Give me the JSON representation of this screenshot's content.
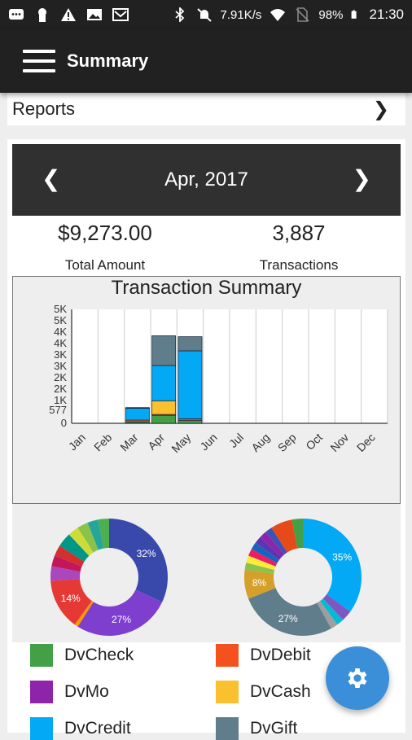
{
  "status_bar": {
    "network_speed": "7.91K/s",
    "battery": "98%",
    "time": "21:30"
  },
  "app_bar": {
    "title": "Summary"
  },
  "reports": {
    "label": "Reports"
  },
  "month_selector": {
    "label": "Apr, 2017"
  },
  "stats": {
    "total_amount": {
      "value": "$9,273.00",
      "label": "Total Amount"
    },
    "transactions": {
      "value": "3,887",
      "label": "Transactions"
    }
  },
  "colors": {
    "DvCheck": "#43a047",
    "DvDebit": "#f4511e",
    "DvMo": "#8e24aa",
    "DvCash": "#fbc02d",
    "DvCredit": "#03a9f4",
    "DvGift": "#607d8b",
    "fab": "#3b8ed8"
  },
  "chart_data": [
    {
      "type": "bar",
      "title": "Transaction Summary",
      "categories": [
        "Jan",
        "Feb",
        "Mar",
        "Apr",
        "May",
        "Jun",
        "Jul",
        "Aug",
        "Sep",
        "Oct",
        "Nov",
        "Dec"
      ],
      "y_tick_labels": [
        "0",
        "577",
        "1K",
        "2K",
        "2K",
        "3K",
        "3K",
        "4K",
        "4K",
        "5K",
        "5K"
      ],
      "y_tick_values": [
        0,
        577,
        1000,
        1500,
        2000,
        2500,
        3000,
        3500,
        4000,
        4500,
        5000
      ],
      "ylim": [
        0,
        5000
      ],
      "stacked": true,
      "series": [
        {
          "name": "DvCheck",
          "values": [
            0,
            0,
            60,
            350,
            120,
            0,
            0,
            0,
            0,
            0,
            0,
            0
          ]
        },
        {
          "name": "DvDebit",
          "values": [
            0,
            0,
            80,
            40,
            80,
            0,
            0,
            0,
            0,
            0,
            0,
            0
          ]
        },
        {
          "name": "DvCash",
          "values": [
            0,
            0,
            0,
            600,
            0,
            0,
            0,
            0,
            0,
            0,
            0,
            0
          ]
        },
        {
          "name": "DvCredit",
          "values": [
            0,
            0,
            520,
            1550,
            2980,
            0,
            0,
            0,
            0,
            0,
            0,
            0
          ]
        },
        {
          "name": "DvGift",
          "values": [
            0,
            0,
            30,
            1300,
            620,
            0,
            0,
            0,
            0,
            0,
            0,
            0
          ]
        }
      ]
    },
    {
      "type": "pie",
      "slices": [
        {
          "label": "32%",
          "value": 32,
          "color": "#3949ab"
        },
        {
          "label": "27%",
          "value": 27,
          "color": "#7e3fcf"
        },
        {
          "label": "",
          "value": 1,
          "color": "#ff9800"
        },
        {
          "label": "14%",
          "value": 14,
          "color": "#e53935"
        },
        {
          "label": "",
          "value": 4,
          "color": "#ab47bc"
        },
        {
          "label": "",
          "value": 3,
          "color": "#c2185b"
        },
        {
          "label": "",
          "value": 3,
          "color": "#d32f2f"
        },
        {
          "label": "",
          "value": 4,
          "color": "#009688"
        },
        {
          "label": "",
          "value": 3,
          "color": "#cddc39"
        },
        {
          "label": "",
          "value": 3,
          "color": "#8bc34a"
        },
        {
          "label": "",
          "value": 3,
          "color": "#26a69a"
        },
        {
          "label": "",
          "value": 3,
          "color": "#4caf50"
        }
      ]
    },
    {
      "type": "pie",
      "slices": [
        {
          "label": "35%",
          "value": 35,
          "color": "#03a9f4"
        },
        {
          "label": "",
          "value": 3,
          "color": "#7e57c2"
        },
        {
          "label": "",
          "value": 2,
          "color": "#00bcd4"
        },
        {
          "label": "",
          "value": 2,
          "color": "#9e9e9e"
        },
        {
          "label": "27%",
          "value": 27,
          "color": "#607d8b"
        },
        {
          "label": "8%",
          "value": 8,
          "color": "#d4a02a"
        },
        {
          "label": "",
          "value": 2,
          "color": "#8bc34a"
        },
        {
          "label": "",
          "value": 2,
          "color": "#ffeb3b"
        },
        {
          "label": "",
          "value": 2,
          "color": "#e91e63"
        },
        {
          "label": "",
          "value": 2,
          "color": "#1565c0"
        },
        {
          "label": "",
          "value": 2,
          "color": "#5e35b1"
        },
        {
          "label": "",
          "value": 2,
          "color": "#8e24aa"
        },
        {
          "label": "",
          "value": 2,
          "color": "#3f51b5"
        },
        {
          "label": "",
          "value": 6,
          "color": "#e64a19"
        },
        {
          "label": "",
          "value": 3,
          "color": "#43a047"
        }
      ]
    }
  ],
  "legend": [
    {
      "name": "DvCheck",
      "color": "#43a047"
    },
    {
      "name": "DvDebit",
      "color": "#f4511e"
    },
    {
      "name": "DvMo",
      "color": "#8e24aa"
    },
    {
      "name": "DvCash",
      "color": "#fbc02d"
    },
    {
      "name": "DvCredit",
      "color": "#03a9f4"
    },
    {
      "name": "DvGift",
      "color": "#607d8b"
    }
  ],
  "fab": {
    "icon": "gear-icon"
  }
}
